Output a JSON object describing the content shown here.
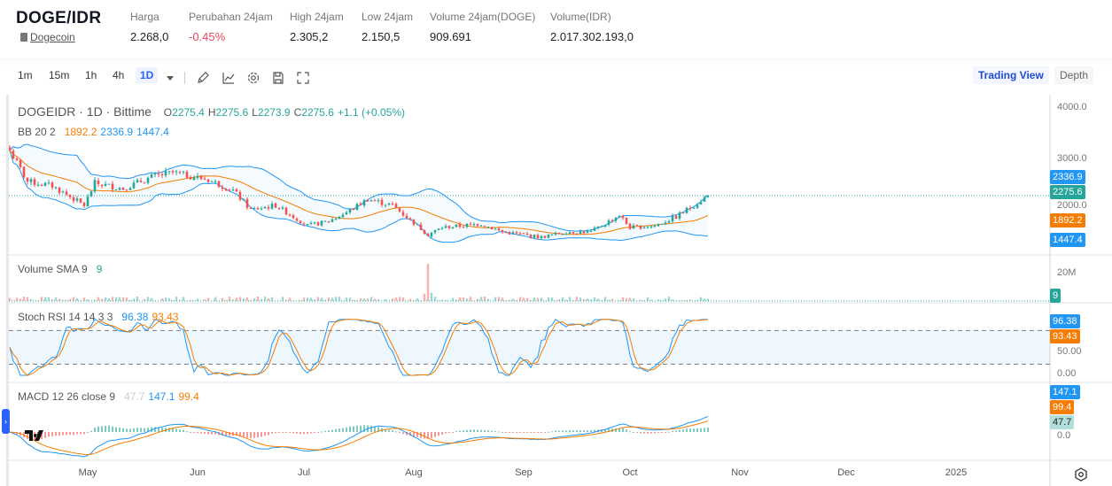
{
  "header": {
    "pair": "DOGE/IDR",
    "coin": "Dogecoin",
    "stats": [
      {
        "label": "Harga",
        "value": "2.268,0"
      },
      {
        "label": "Perubahan 24jam",
        "value": "-0.45%",
        "negative": true
      },
      {
        "label": "High 24jam",
        "value": "2.305,2"
      },
      {
        "label": "Low 24jam",
        "value": "2.150,5"
      },
      {
        "label": "Volume 24jam(DOGE)",
        "value": "909.691"
      },
      {
        "label": "Volume(IDR)",
        "value": "2.017.302.193,0"
      }
    ]
  },
  "toolbar": {
    "intervals": [
      "1m",
      "15m",
      "1h",
      "4h",
      "1D"
    ],
    "active_interval": "1D",
    "icons": [
      "pencil-icon",
      "indicators-icon",
      "gear-icon",
      "save-icon",
      "fullscreen-icon"
    ],
    "trading_view": "Trading View",
    "depth": "Depth"
  },
  "legend": {
    "title": "DOGEIDR · 1D · Bittime",
    "ohlc": {
      "o": "O",
      "ov": "2275.4",
      "h": "H",
      "hv": "2275.6",
      "l": "L",
      "lv": "2273.9",
      "c": "C",
      "cv": "2275.6",
      "chg": "+1.1 (+0.05%)"
    },
    "bb": {
      "label": "BB 20 2",
      "basis": "1892.2",
      "upper": "2336.9",
      "lower": "1447.4"
    },
    "volume": {
      "label": "Volume SMA 9",
      "value": "9"
    },
    "stoch": {
      "label": "Stoch RSI 14 14 3 3",
      "k": "96.38",
      "d": "93.43"
    },
    "macd": {
      "label": "MACD 12 26 close 9",
      "hist": "47.7",
      "macd": "147.1",
      "signal": "99.4"
    }
  },
  "axis": {
    "price": [
      "4000.0",
      "3000.0",
      "2000.0"
    ],
    "volume": "20M",
    "stoch": [
      "50.00",
      "0.00"
    ],
    "macd": "0.0",
    "badges": {
      "upper": "2336.9",
      "last": "2275.6",
      "basis": "1892.2",
      "lower": "1447.4",
      "vol": "9",
      "k": "96.38",
      "d": "93.43",
      "macd": "147.1",
      "signal": "99.4",
      "hist": "47.7"
    },
    "time": [
      "May",
      "Jun",
      "Jul",
      "Aug",
      "Sep",
      "Oct",
      "Nov",
      "Dec",
      "2025"
    ]
  },
  "colors": {
    "up": "#26a69a",
    "down": "#ef5350",
    "bb": "#2196f3",
    "basis": "#f57c00",
    "accent": "#2962ff"
  },
  "chart_data": {
    "type": "candlestick",
    "price_range": [
      1300,
      4000
    ],
    "close_keypoints": [
      {
        "date": "2024-04-09",
        "close": 3155
      },
      {
        "date": "2024-04-14",
        "close": 2550
      },
      {
        "date": "2024-04-21",
        "close": 2465
      },
      {
        "date": "2024-04-30",
        "close": 2085
      },
      {
        "date": "2024-05-03",
        "close": 2517
      },
      {
        "date": "2024-05-11",
        "close": 2414
      },
      {
        "date": "2024-05-19",
        "close": 2638
      },
      {
        "date": "2024-05-25",
        "close": 2724
      },
      {
        "date": "2024-06-04",
        "close": 2586
      },
      {
        "date": "2024-06-11",
        "close": 2379
      },
      {
        "date": "2024-06-16",
        "close": 2000
      },
      {
        "date": "2024-06-23",
        "close": 2086
      },
      {
        "date": "2024-07-02",
        "close": 1690
      },
      {
        "date": "2024-07-08",
        "close": 1776
      },
      {
        "date": "2024-07-13",
        "close": 1948
      },
      {
        "date": "2024-07-19",
        "close": 2207
      },
      {
        "date": "2024-07-26",
        "close": 2086
      },
      {
        "date": "2024-08-05",
        "close": 1517
      },
      {
        "date": "2024-08-09",
        "close": 1655
      },
      {
        "date": "2024-08-20",
        "close": 1724
      },
      {
        "date": "2024-08-26",
        "close": 1569
      },
      {
        "date": "2024-09-06",
        "close": 1466
      },
      {
        "date": "2024-09-13",
        "close": 1569
      },
      {
        "date": "2024-09-20",
        "close": 1569
      },
      {
        "date": "2024-09-28",
        "close": 1897
      },
      {
        "date": "2024-10-01",
        "close": 1655
      },
      {
        "date": "2024-10-08",
        "close": 1690
      },
      {
        "date": "2024-10-14",
        "close": 1862
      },
      {
        "date": "2024-10-23",
        "close": 2276
      }
    ]
  }
}
